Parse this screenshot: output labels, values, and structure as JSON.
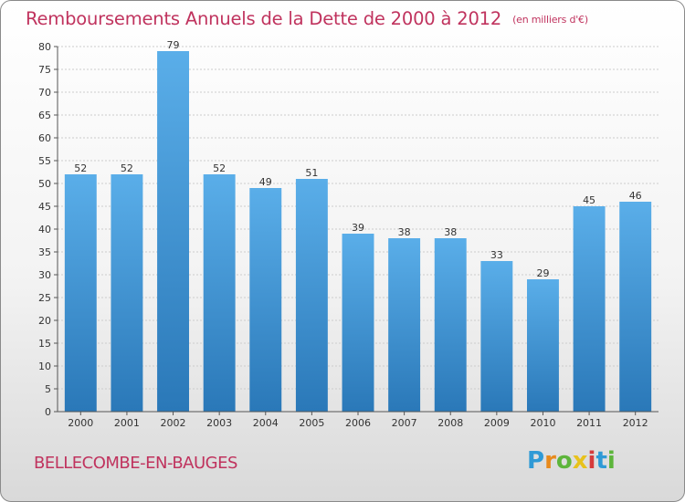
{
  "chart_data": {
    "type": "bar",
    "title": "Remboursements Annuels de la Dette de 2000 à 2012",
    "subtitle": "(en milliers d'€)",
    "xlabel": "",
    "ylabel": "",
    "categories": [
      "2000",
      "2001",
      "2002",
      "2003",
      "2004",
      "2005",
      "2006",
      "2007",
      "2008",
      "2009",
      "2010",
      "2011",
      "2012"
    ],
    "values": [
      52,
      52,
      79,
      52,
      49,
      51,
      39,
      38,
      38,
      33,
      29,
      45,
      46
    ],
    "data_labels": [
      "52",
      "52",
      "79",
      "52",
      "49",
      "51",
      "39",
      "38",
      "38",
      "33",
      "29",
      "45",
      "46"
    ],
    "ylim": [
      0,
      80
    ],
    "yticks": [
      0,
      5,
      10,
      15,
      20,
      25,
      30,
      35,
      40,
      45,
      50,
      55,
      60,
      65,
      70,
      75,
      80
    ],
    "grid": true,
    "colors": {
      "bar_light": "#5aaee9",
      "bar_dark": "#2a78b8",
      "grid": "#cccccc",
      "axis": "#555555",
      "title": "#c0335e"
    }
  },
  "footer": {
    "commune": "BELLECOMBE-EN-BAUGES"
  },
  "logo": {
    "letters": [
      "P",
      "r",
      "o",
      "x",
      "i",
      "t",
      "i"
    ],
    "colors": [
      "#2f9ad6",
      "#e88a1c",
      "#5db53b",
      "#e8c21c",
      "#d63b3b",
      "#2f9ad6",
      "#5db53b"
    ]
  }
}
